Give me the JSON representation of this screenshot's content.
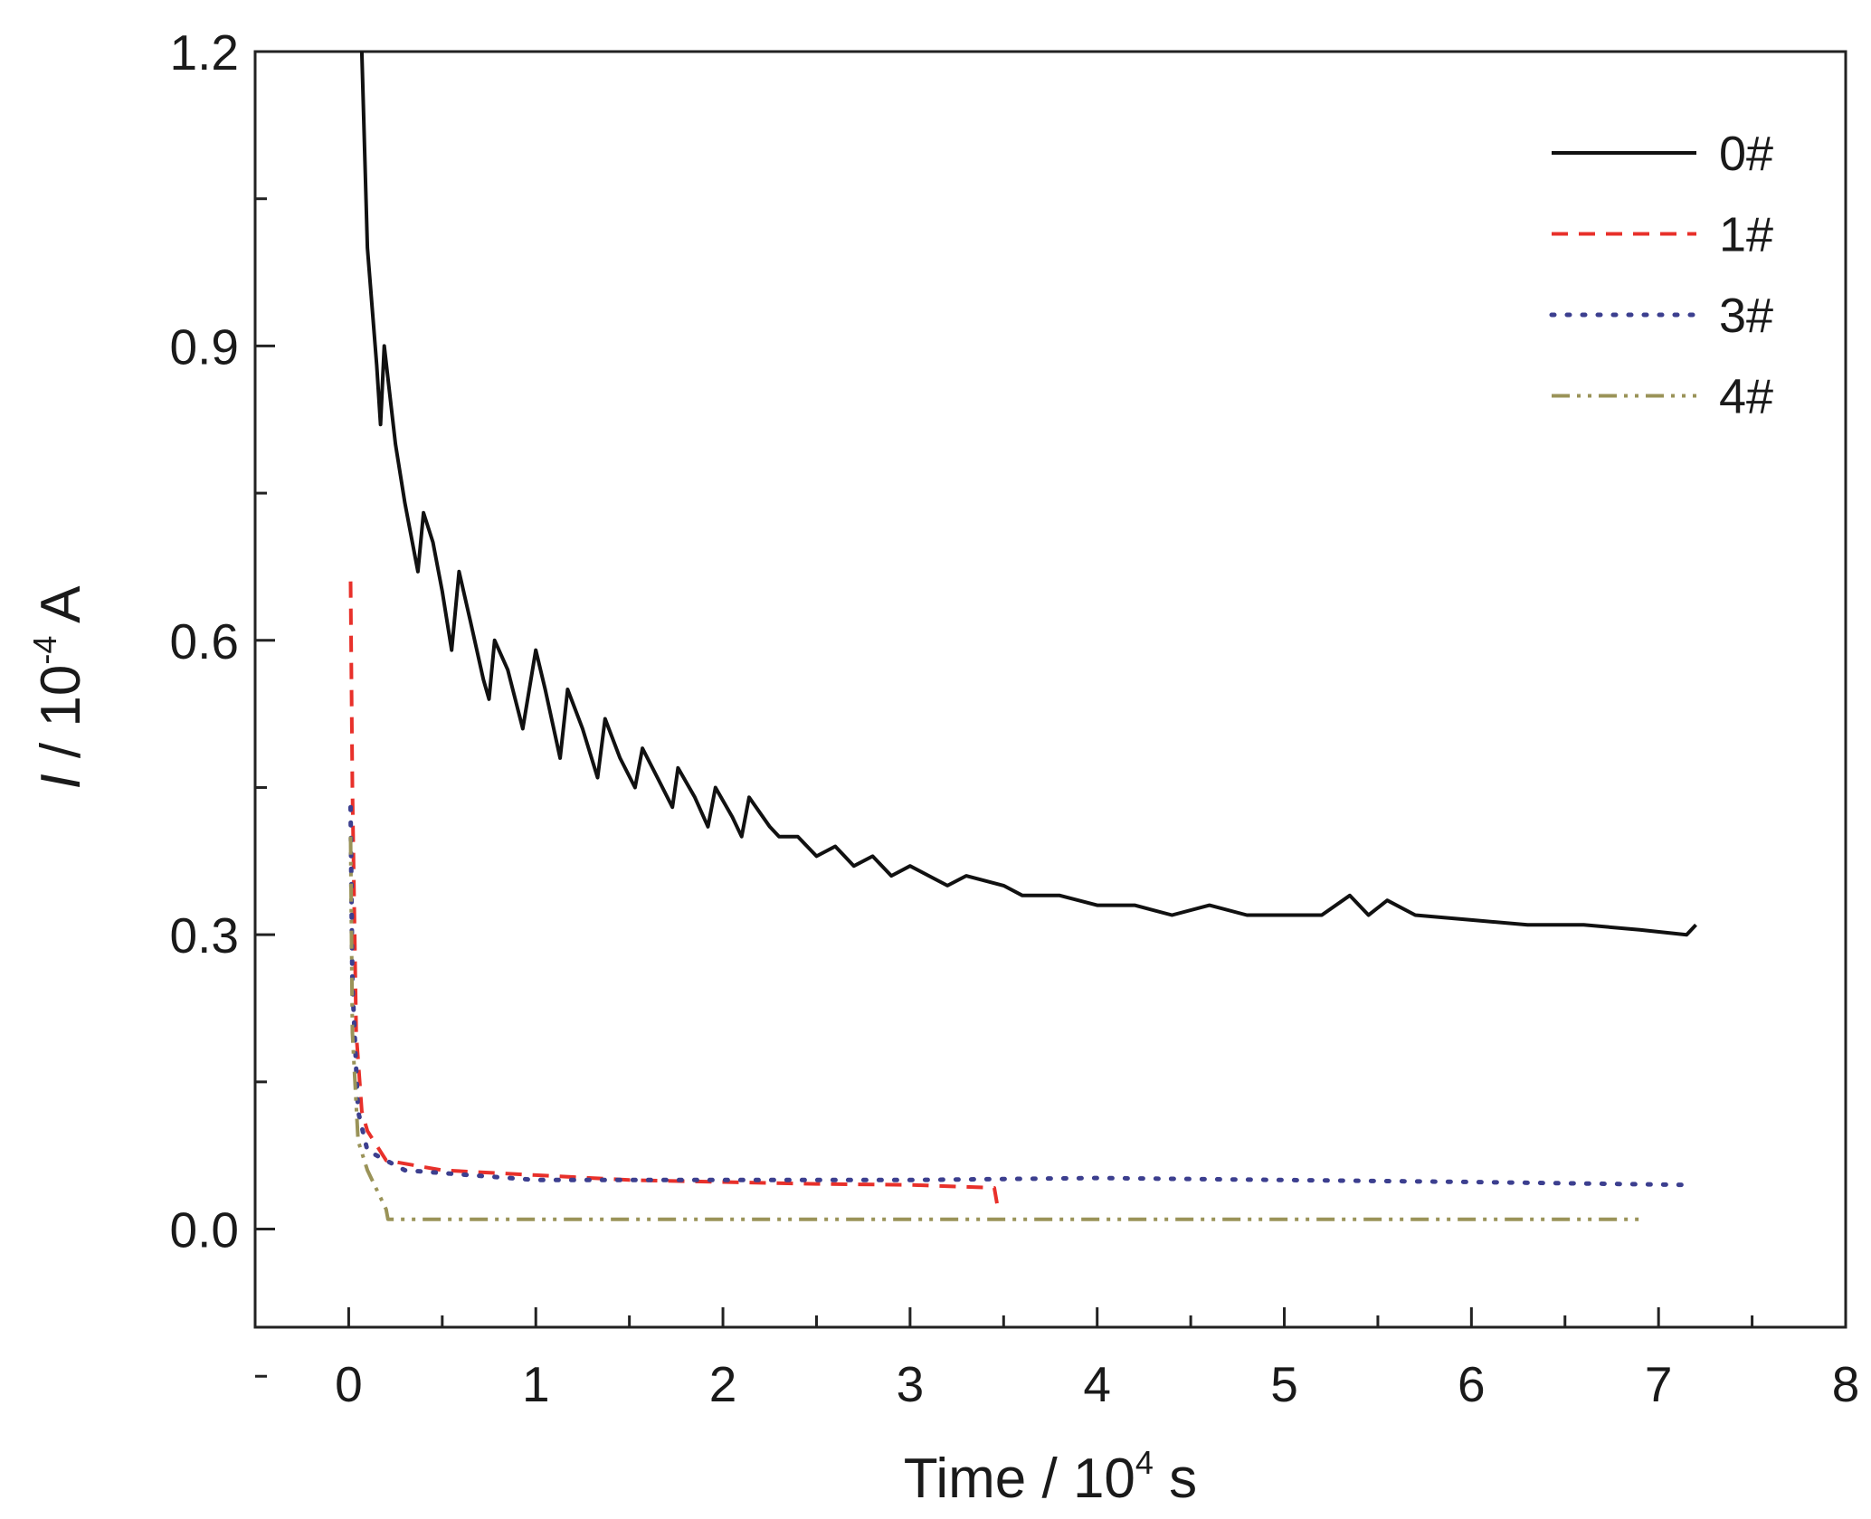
{
  "chart_data": {
    "type": "line",
    "title": "",
    "xlabel": "Time / 10^4 s",
    "xlabel_parts": {
      "main": "Time / 10",
      "sup": "4",
      "tail": " s"
    },
    "ylabel": "I / 10^-4 A",
    "ylabel_parts": {
      "italic": "I",
      "main": " / 10",
      "sup": "-4",
      "tail": " A"
    },
    "xlim": [
      -0.5,
      8
    ],
    "ylim": [
      -0.1,
      1.2
    ],
    "xticks": [
      "0",
      "1",
      "2",
      "3",
      "4",
      "5",
      "6",
      "7",
      "8"
    ],
    "yticks": [
      "0.0",
      "0.3",
      "0.6",
      "0.9",
      "1.2"
    ],
    "grid": false,
    "legend_position": "top-right",
    "series": [
      {
        "name": "0#",
        "color": "#111111",
        "style": "solid",
        "x": [
          0.07,
          0.1,
          0.15,
          0.17,
          0.19,
          0.25,
          0.3,
          0.37,
          0.4,
          0.45,
          0.5,
          0.55,
          0.59,
          0.65,
          0.72,
          0.75,
          0.78,
          0.85,
          0.93,
          1.0,
          1.05,
          1.13,
          1.17,
          1.25,
          1.33,
          1.37,
          1.45,
          1.53,
          1.57,
          1.65,
          1.73,
          1.76,
          1.85,
          1.92,
          1.96,
          2.05,
          2.1,
          2.14,
          2.25,
          2.3,
          2.4,
          2.5,
          2.6,
          2.7,
          2.8,
          2.9,
          3.0,
          3.2,
          3.3,
          3.5,
          3.6,
          3.8,
          4.0,
          4.2,
          4.4,
          4.6,
          4.8,
          5.0,
          5.2,
          5.35,
          5.45,
          5.55,
          5.7,
          6.0,
          6.3,
          6.6,
          6.9,
          7.15,
          7.2
        ],
        "y": [
          1.2,
          1.0,
          0.88,
          0.82,
          0.9,
          0.8,
          0.74,
          0.67,
          0.73,
          0.7,
          0.65,
          0.59,
          0.67,
          0.62,
          0.56,
          0.54,
          0.6,
          0.57,
          0.51,
          0.59,
          0.55,
          0.48,
          0.55,
          0.51,
          0.46,
          0.52,
          0.48,
          0.45,
          0.49,
          0.46,
          0.43,
          0.47,
          0.44,
          0.41,
          0.45,
          0.42,
          0.4,
          0.44,
          0.41,
          0.4,
          0.4,
          0.38,
          0.39,
          0.37,
          0.38,
          0.36,
          0.37,
          0.35,
          0.36,
          0.35,
          0.34,
          0.34,
          0.33,
          0.33,
          0.32,
          0.33,
          0.32,
          0.32,
          0.32,
          0.34,
          0.32,
          0.335,
          0.32,
          0.315,
          0.31,
          0.31,
          0.305,
          0.3,
          0.31
        ]
      },
      {
        "name": "1#",
        "color": "#e8302a",
        "style": "dashed",
        "x": [
          0.01,
          0.02,
          0.04,
          0.07,
          0.1,
          0.15,
          0.2,
          0.5,
          1,
          1.5,
          2,
          2.5,
          3,
          3.45,
          3.47
        ],
        "y": [
          0.66,
          0.45,
          0.2,
          0.12,
          0.1,
          0.085,
          0.07,
          0.06,
          0.055,
          0.05,
          0.048,
          0.046,
          0.045,
          0.042,
          0.02
        ]
      },
      {
        "name": "3#",
        "color": "#3c3f8f",
        "style": "dotted",
        "x": [
          0.01,
          0.02,
          0.05,
          0.1,
          0.3,
          1,
          2,
          3,
          4,
          5,
          6,
          7.15
        ],
        "y": [
          0.43,
          0.25,
          0.12,
          0.08,
          0.06,
          0.05,
          0.05,
          0.05,
          0.052,
          0.05,
          0.048,
          0.045
        ]
      },
      {
        "name": "4#",
        "color": "#9a9358",
        "style": "dash-dot-dot",
        "x": [
          0.01,
          0.02,
          0.05,
          0.1,
          0.2,
          0.21,
          1,
          2,
          3,
          4,
          5,
          6,
          6.9
        ],
        "y": [
          0.4,
          0.2,
          0.09,
          0.06,
          0.02,
          0.01,
          0.01,
          0.01,
          0.01,
          0.01,
          0.01,
          0.01,
          0.01
        ]
      }
    ]
  }
}
